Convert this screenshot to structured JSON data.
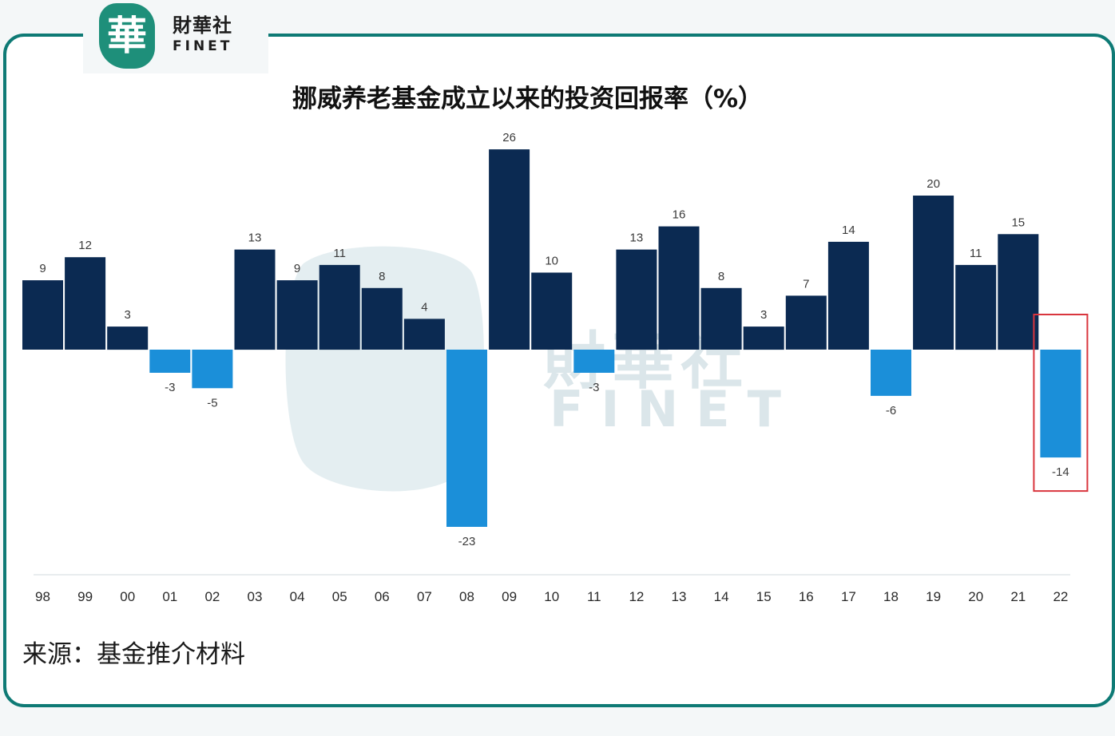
{
  "logo": {
    "mark_char": "華",
    "name_cn": "財華社",
    "name_en": "FINET"
  },
  "title": "挪威养老基金成立以来的投资回报率（%）",
  "source": "来源：基金推介材料",
  "watermark": {
    "name_cn": "財華社",
    "name_en": "FINET"
  },
  "colors": {
    "frame": "#0e7a75",
    "positive": "#0b2a52",
    "negative": "#1b8fd9",
    "highlight_box": "#d9363e",
    "logo": "#1e8f7a"
  },
  "chart_data": {
    "type": "bar",
    "categories": [
      "98",
      "99",
      "00",
      "01",
      "02",
      "03",
      "04",
      "05",
      "06",
      "07",
      "08",
      "09",
      "10",
      "11",
      "12",
      "13",
      "14",
      "15",
      "16",
      "17",
      "18",
      "19",
      "20",
      "21",
      "22"
    ],
    "values": [
      9,
      12,
      3,
      -3,
      -5,
      13,
      9,
      11,
      8,
      4,
      -23,
      26,
      10,
      -3,
      13,
      16,
      8,
      3,
      7,
      14,
      -6,
      20,
      11,
      15,
      -14
    ],
    "value_labels": [
      "9",
      "12",
      "3",
      "-3",
      "-5",
      "13",
      "9",
      "11",
      "8",
      "4",
      "-23",
      "26",
      "10",
      "-3",
      "13",
      "16",
      "8",
      "3",
      "7",
      "14",
      "-6",
      "20",
      "11",
      "15",
      "-14"
    ],
    "title": "挪威养老基金成立以来的投资回报率（%）",
    "ylim": [
      -28,
      30
    ],
    "grid": false,
    "legend": "none",
    "highlighted_category": "22"
  }
}
